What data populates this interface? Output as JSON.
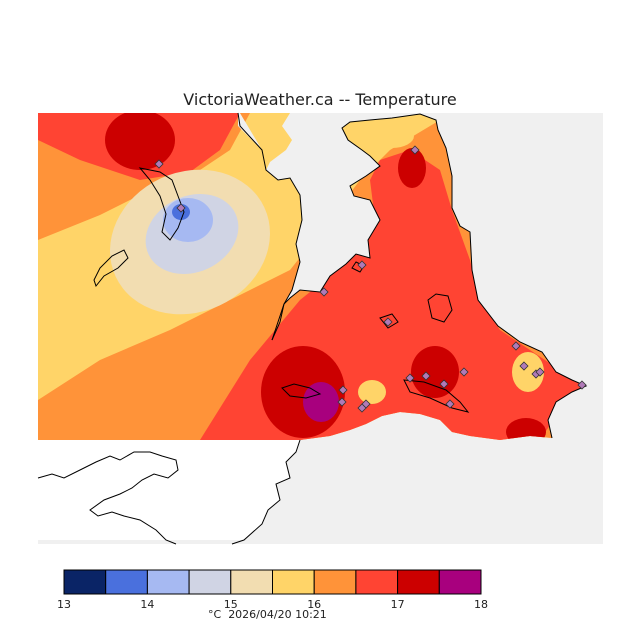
{
  "title": "VictoriaWeather.ca -- Temperature",
  "legend": {
    "ticks": [
      "13",
      "14",
      "15",
      "16",
      "17",
      "18"
    ],
    "colors": [
      "#0a2466",
      "#4a70dd",
      "#a6b9f2",
      "#d0d4e4",
      "#f2ddb1",
      "#ffd468",
      "#ff9339",
      "#ff4433",
      "#cc0000",
      "#a8007e"
    ],
    "unit": "°C",
    "timestamp": "2026/04/20 10:21"
  },
  "map": {
    "background_color": "#f0f0f0",
    "station_marker_color": "#b07ab8",
    "station_count": 20
  }
}
